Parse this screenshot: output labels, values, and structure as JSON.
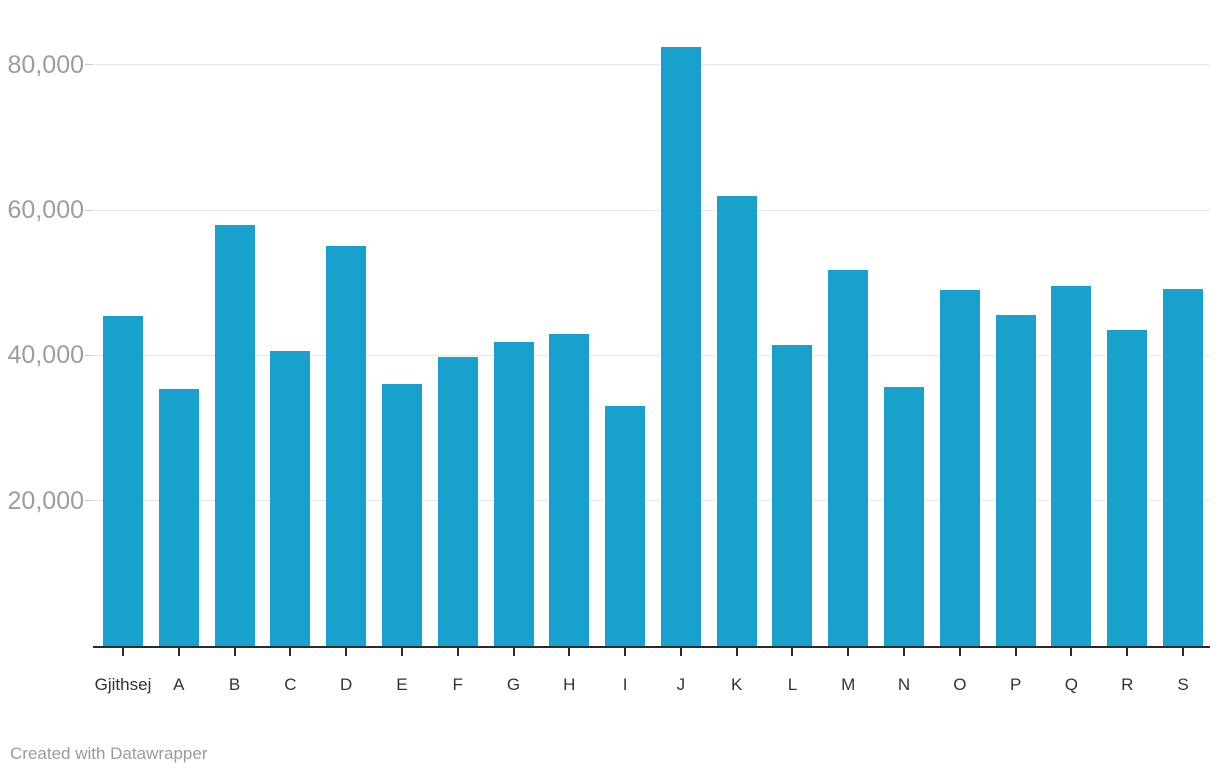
{
  "chart_data": {
    "type": "bar",
    "title": "",
    "xlabel": "",
    "ylabel": "",
    "categories": [
      "Gjithsej",
      "A",
      "B",
      "C",
      "D",
      "E",
      "F",
      "G",
      "H",
      "I",
      "J",
      "K",
      "L",
      "M",
      "N",
      "O",
      "P",
      "Q",
      "R",
      "S"
    ],
    "values": [
      45400,
      35400,
      58000,
      40600,
      55100,
      36100,
      39800,
      41800,
      43000,
      33000,
      82400,
      61900,
      41500,
      51800,
      35700,
      49000,
      45500,
      49600,
      43500,
      49100
    ],
    "ylim": [
      0,
      87000
    ],
    "yticks": [
      20000,
      40000,
      60000,
      80000
    ],
    "ytick_labels": [
      "20,000",
      "40,000",
      "60,000",
      "80,000"
    ],
    "grid": true,
    "legend": "none",
    "bar_color": "#18a1cd",
    "gridline_color": "#e8e8e8",
    "axis_color": "#2b2b2b",
    "ytick_label_color": "#9d9d9d",
    "xtick_label_color": "#333333"
  },
  "footer": {
    "credit": "Created with Datawrapper"
  }
}
